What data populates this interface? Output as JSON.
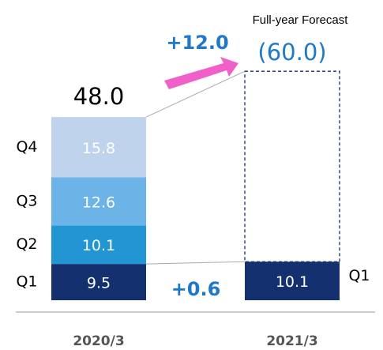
{
  "chart_data": {
    "type": "stacked_bar",
    "title": "Full-year Forecast",
    "categories": [
      "2020/3",
      "2021/3"
    ],
    "series": [
      {
        "name": "Q1",
        "color": "#14306e",
        "values": [
          9.5,
          10.1
        ]
      },
      {
        "name": "Q2",
        "color": "#2196d3",
        "values": [
          10.1,
          null
        ]
      },
      {
        "name": "Q3",
        "color": "#6cb4e8",
        "values": [
          12.6,
          null
        ]
      },
      {
        "name": "Q4",
        "color": "#c0d3ec",
        "values": [
          15.8,
          null
        ]
      }
    ],
    "total_labels": [
      "48.0",
      null
    ],
    "forecast": {
      "value": 60.0,
      "label": "(60.0)",
      "color": "#14306e"
    },
    "annotations": {
      "total_change": "+12.0",
      "q1_change": "+0.6"
    }
  }
}
